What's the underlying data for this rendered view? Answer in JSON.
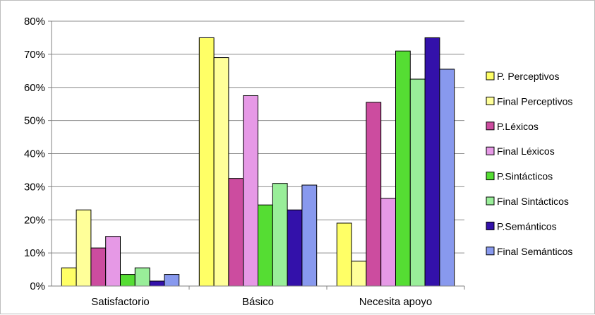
{
  "chart_data": {
    "type": "bar",
    "categories": [
      "Satisfactorio",
      "Básico",
      "Necesita apoyo"
    ],
    "y_ticks": [
      "0%",
      "10%",
      "20%",
      "30%",
      "40%",
      "50%",
      "60%",
      "70%",
      "80%"
    ],
    "ylim": [
      0,
      80
    ],
    "y_unit": "%",
    "grid": true,
    "legend_position": "right",
    "series": [
      {
        "name": "P. Perceptivos",
        "color": "#FFFF66",
        "values": [
          5.5,
          75,
          19
        ]
      },
      {
        "name": "Final Perceptivos",
        "color": "#FFFF99",
        "values": [
          23,
          69,
          7.5
        ]
      },
      {
        "name": "P.Léxicos",
        "color": "#CC4C9F",
        "values": [
          11.5,
          32.5,
          55.5
        ]
      },
      {
        "name": "Final Léxicos",
        "color": "#E699E6",
        "values": [
          15,
          57.5,
          26.5
        ]
      },
      {
        "name": "P.Sintácticos",
        "color": "#55DD33",
        "values": [
          3.5,
          24.5,
          71
        ]
      },
      {
        "name": "Final Sintácticos",
        "color": "#99EE99",
        "values": [
          5.5,
          31,
          62.5
        ]
      },
      {
        "name": "P.Semánticos",
        "color": "#3311AA",
        "values": [
          1.5,
          23,
          75
        ]
      },
      {
        "name": "Final Semánticos",
        "color": "#8899EE",
        "values": [
          3.5,
          30.5,
          65.5
        ]
      }
    ]
  }
}
